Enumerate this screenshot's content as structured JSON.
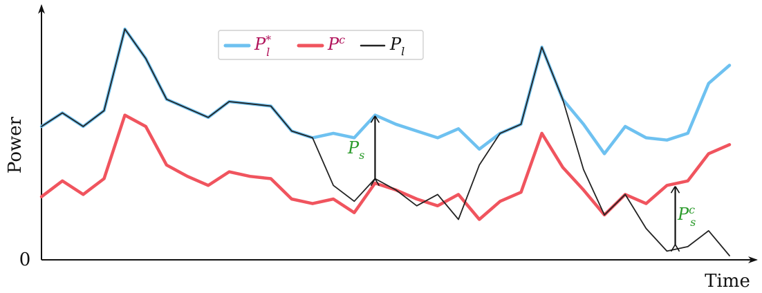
{
  "chart_data": {
    "type": "line",
    "title": "",
    "xlabel": "Time",
    "ylabel": "Power",
    "y_zero_label": "0",
    "ylim": [
      0,
      100
    ],
    "grid": false,
    "legend": {
      "placement": "top-center",
      "entries": [
        {
          "base": "P",
          "sup": "*",
          "sub": "l",
          "color": "#6ec1f0"
        },
        {
          "base": "P",
          "sup": "c",
          "sub": "",
          "color": "#f0545e"
        },
        {
          "base": "P",
          "sup": "",
          "sub": "l",
          "color": "#222222"
        }
      ]
    },
    "annotations": [
      {
        "base": "P",
        "sup": "",
        "sub": "s",
        "color": "#2a9a2a"
      },
      {
        "base": "P",
        "sup": "c",
        "sub": "s",
        "color": "#2a9a2a"
      }
    ],
    "series": [
      {
        "key": "p_l_star",
        "color": "#6ec1f0",
        "points": [
          [
            0,
            57
          ],
          [
            1,
            63
          ],
          [
            2,
            57
          ],
          [
            3,
            64
          ],
          [
            4,
            100
          ],
          [
            5,
            87
          ],
          [
            6,
            69
          ],
          [
            7,
            65
          ],
          [
            8,
            61
          ],
          [
            9,
            68
          ],
          [
            10,
            67
          ],
          [
            11,
            66
          ],
          [
            12,
            55
          ],
          [
            13,
            52
          ],
          [
            14,
            54
          ],
          [
            15,
            52
          ],
          [
            16,
            62
          ],
          [
            17,
            58
          ],
          [
            18,
            55
          ],
          [
            19,
            52
          ],
          [
            20,
            56
          ],
          [
            21,
            47
          ],
          [
            22,
            54
          ],
          [
            23,
            58
          ],
          [
            24,
            92
          ],
          [
            25,
            69
          ],
          [
            26,
            58
          ],
          [
            27,
            45
          ],
          [
            28,
            57
          ],
          [
            29,
            52
          ],
          [
            30,
            51
          ],
          [
            31,
            54
          ],
          [
            32,
            76
          ],
          [
            33,
            84
          ]
        ]
      },
      {
        "key": "p_c",
        "color": "#f0545e",
        "points": [
          [
            0,
            26
          ],
          [
            1,
            33
          ],
          [
            2,
            27
          ],
          [
            3,
            34
          ],
          [
            4,
            62
          ],
          [
            5,
            57
          ],
          [
            6,
            40
          ],
          [
            7,
            35
          ],
          [
            8,
            31
          ],
          [
            9,
            37
          ],
          [
            10,
            35
          ],
          [
            11,
            34
          ],
          [
            12,
            25
          ],
          [
            13,
            23
          ],
          [
            14,
            25
          ],
          [
            15,
            19
          ],
          [
            16,
            32
          ],
          [
            17,
            29
          ],
          [
            18,
            25
          ],
          [
            19,
            22
          ],
          [
            20,
            27
          ],
          [
            21,
            16
          ],
          [
            22,
            24
          ],
          [
            23,
            28
          ],
          [
            24,
            54
          ],
          [
            25,
            39
          ],
          [
            26,
            29
          ],
          [
            27,
            18
          ],
          [
            28,
            27
          ],
          [
            29,
            23
          ],
          [
            30,
            31
          ],
          [
            31,
            33
          ],
          [
            32,
            45
          ],
          [
            33,
            49
          ]
        ]
      },
      {
        "key": "p_l",
        "color": "#222222",
        "points": [
          [
            0,
            57
          ],
          [
            1,
            63
          ],
          [
            2,
            57
          ],
          [
            3,
            64
          ],
          [
            4,
            100
          ],
          [
            5,
            87
          ],
          [
            6,
            69
          ],
          [
            7,
            65
          ],
          [
            8,
            61
          ],
          [
            9,
            68
          ],
          [
            10,
            67
          ],
          [
            11,
            66
          ],
          [
            12,
            55
          ],
          [
            13,
            52
          ],
          [
            14,
            31
          ],
          [
            15,
            24
          ],
          [
            16,
            34
          ],
          [
            17,
            29
          ],
          [
            18,
            22
          ],
          [
            19,
            27
          ],
          [
            20,
            16
          ],
          [
            21,
            40
          ],
          [
            22,
            54
          ],
          [
            23,
            58
          ],
          [
            24,
            92
          ],
          [
            25,
            69
          ],
          [
            26,
            38
          ],
          [
            27,
            18
          ],
          [
            28,
            27
          ],
          [
            29,
            12
          ],
          [
            30,
            2
          ],
          [
            31,
            4
          ],
          [
            32,
            11
          ],
          [
            33,
            0
          ]
        ]
      }
    ]
  }
}
